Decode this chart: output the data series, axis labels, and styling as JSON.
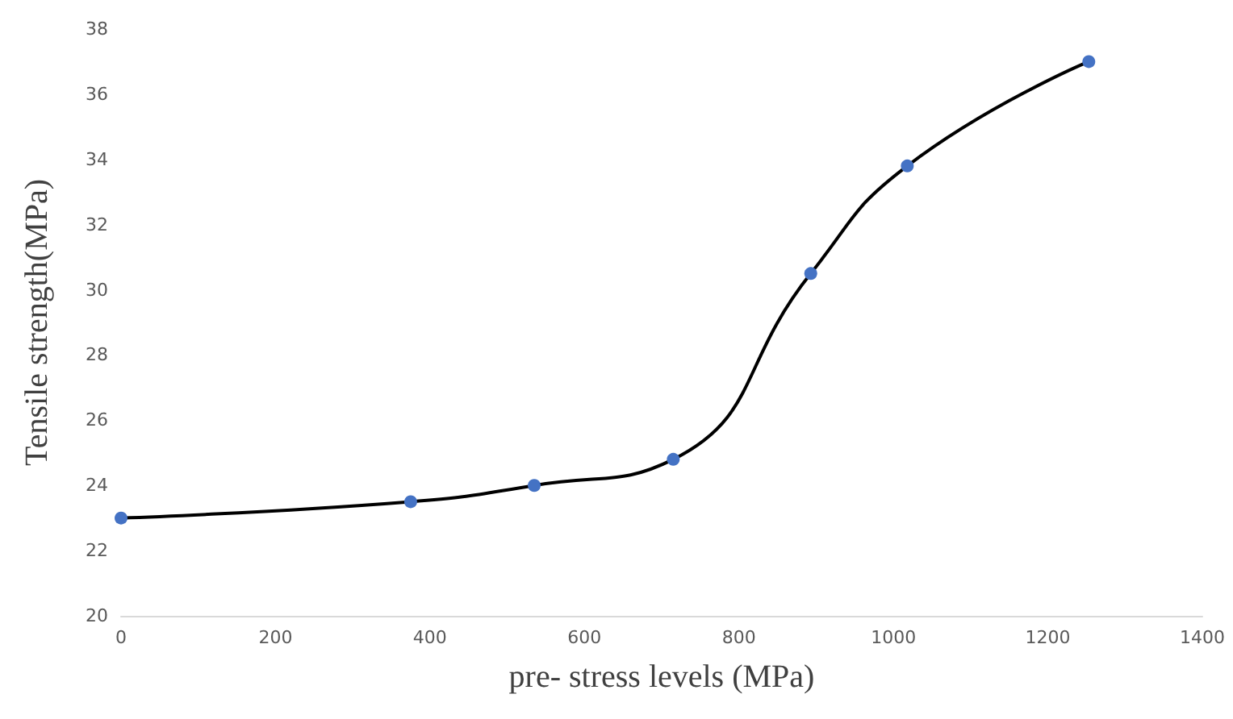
{
  "chart_data": {
    "type": "line",
    "xlabel": "pre- stress levels (MPa)",
    "ylabel": "Tensile strength(MPa)",
    "x": [
      0,
      375,
      535,
      715,
      893,
      1018,
      1253
    ],
    "series": [
      {
        "color": "#4472c4",
        "values": [
          23,
          23.5,
          24,
          24.8,
          30.5,
          33.8,
          37
        ]
      }
    ],
    "xlim": [
      0,
      1400
    ],
    "xticks": [
      0,
      200,
      400,
      600,
      800,
      1000,
      1200,
      1400
    ],
    "ylim": [
      20,
      38
    ],
    "yticks": [
      20,
      22,
      24,
      26,
      28,
      30,
      32,
      34,
      36,
      38
    ],
    "grid": false,
    "marker": "circle",
    "line_style": "solid"
  }
}
